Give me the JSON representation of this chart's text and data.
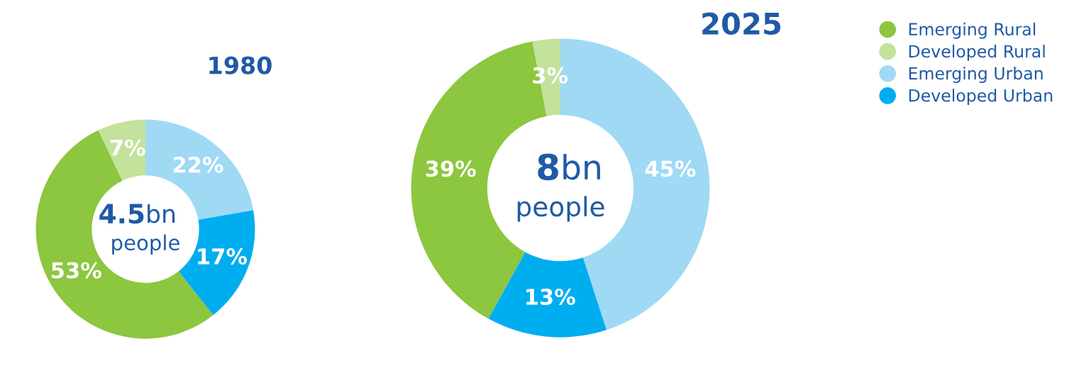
{
  "chart_data": [
    {
      "type": "donut",
      "title": "1980",
      "categories": [
        "Emerging Rural",
        "Developed Rural",
        "Emerging Urban",
        "Developed Urban"
      ],
      "values": [
        53,
        7,
        22,
        17
      ],
      "colors": [
        "#8dc63f",
        "#c3e29b",
        "#9fd9f4",
        "#00aeef"
      ],
      "value_labels": [
        "53%",
        "7%",
        "22%",
        "17%"
      ],
      "annotations": [
        "4.5",
        "bn",
        "people"
      ],
      "legend": "top right"
    },
    {
      "type": "donut",
      "title": "2025",
      "categories": [
        null,
        null,
        null,
        null
      ],
      "values": [
        39,
        3,
        45,
        13
      ],
      "colors": [
        "#8dc63f",
        "#c3e29b",
        "#9fd9f4",
        "#00aeef"
      ],
      "value_labels": [
        "39%",
        "3%",
        "45%",
        "13%"
      ],
      "annotations": [
        "8",
        "bn",
        "people"
      ]
    }
  ]
}
